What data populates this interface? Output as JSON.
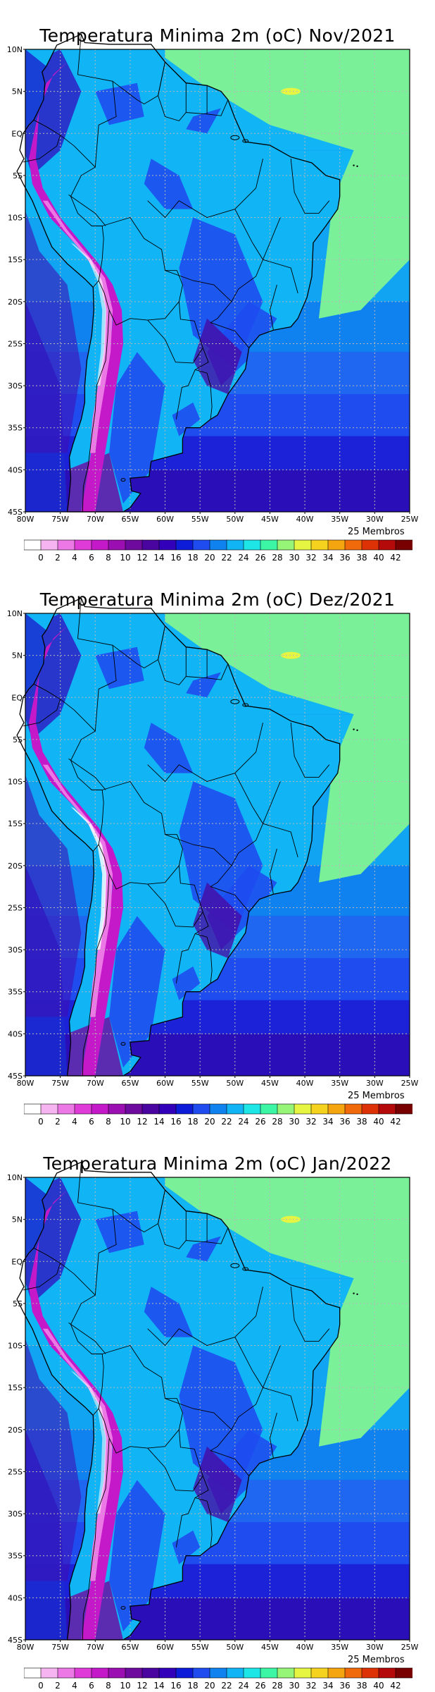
{
  "panels": [
    {
      "title": "Temperatura Minima 2m (oC) Nov/2021",
      "members": "25 Membros"
    },
    {
      "title": "Temperatura Minima 2m (oC) Dez/2021",
      "members": "25 Membros"
    },
    {
      "title": "Temperatura Minima 2m (oC) Jan/2022",
      "members": "25 Membros"
    }
  ],
  "axes": {
    "lat_labels": [
      "10N",
      "5N",
      "EQ",
      "5S",
      "10S",
      "15S",
      "20S",
      "25S",
      "30S",
      "35S",
      "40S",
      "45S"
    ],
    "lon_labels": [
      "80W",
      "75W",
      "70W",
      "65W",
      "60W",
      "55W",
      "50W",
      "45W",
      "40W",
      "35W",
      "30W",
      "25W"
    ],
    "lat_range": [
      10,
      -45
    ],
    "lon_range": [
      -80,
      -25
    ],
    "grid": true
  },
  "colorbar": {
    "labels": [
      "0",
      "2",
      "4",
      "6",
      "8",
      "10",
      "12",
      "14",
      "16",
      "18",
      "20",
      "22",
      "24",
      "26",
      "28",
      "30",
      "32",
      "34",
      "36",
      "38",
      "40",
      "42"
    ],
    "colors": [
      "#ffffff",
      "#f6b4f0",
      "#ec78e6",
      "#df3bd9",
      "#c419c8",
      "#9b0fb2",
      "#6e0a9e",
      "#4a05a0",
      "#3200b9",
      "#0d1cd9",
      "#1e4cef",
      "#0f82f0",
      "#11b4f5",
      "#1ee6e6",
      "#3cf5a5",
      "#96f577",
      "#e6f541",
      "#f5d21e",
      "#f5a50f",
      "#f0690a",
      "#dc3205",
      "#b40a0a",
      "#780000"
    ]
  }
}
